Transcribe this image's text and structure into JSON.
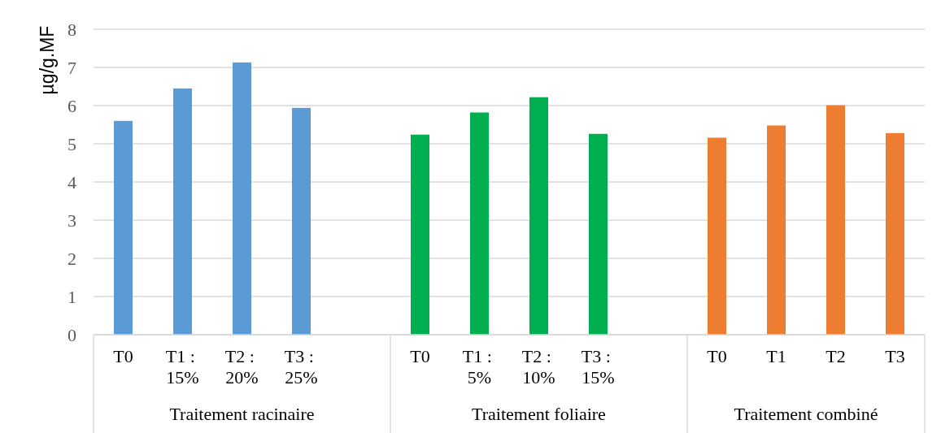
{
  "chart_data": {
    "type": "bar",
    "ylabel": "µg/g.MF",
    "categories": [
      "T0",
      "T1 : 15%",
      "T2 : 20%",
      "T3 : 25%",
      null,
      "T0",
      "T1 : 5%",
      "T2 : 10%",
      "T3 : 15%",
      null,
      "T0",
      "T1",
      "T2",
      "T3"
    ],
    "series": [
      {
        "color": "#5b9bd5",
        "values": [
          5.6,
          6.45,
          7.13,
          5.94,
          null,
          null,
          null,
          null,
          null,
          null,
          null,
          null,
          null,
          null
        ]
      },
      {
        "color": "#00b050",
        "values": [
          null,
          null,
          null,
          null,
          null,
          5.24,
          5.82,
          6.22,
          5.26,
          null,
          null,
          null,
          null,
          null
        ]
      },
      {
        "color": "#ed7d31",
        "values": [
          null,
          null,
          null,
          null,
          null,
          null,
          null,
          null,
          null,
          null,
          5.16,
          5.48,
          6.01,
          5.28
        ]
      }
    ],
    "annotations": [
      "Traitement racinaire",
      "Traitement foliaire",
      "Traitement combiné"
    ],
    "ylim": [
      0,
      8
    ],
    "yticks": [
      0,
      1,
      2,
      3,
      4,
      5,
      6,
      7,
      8
    ],
    "grid": "y"
  }
}
